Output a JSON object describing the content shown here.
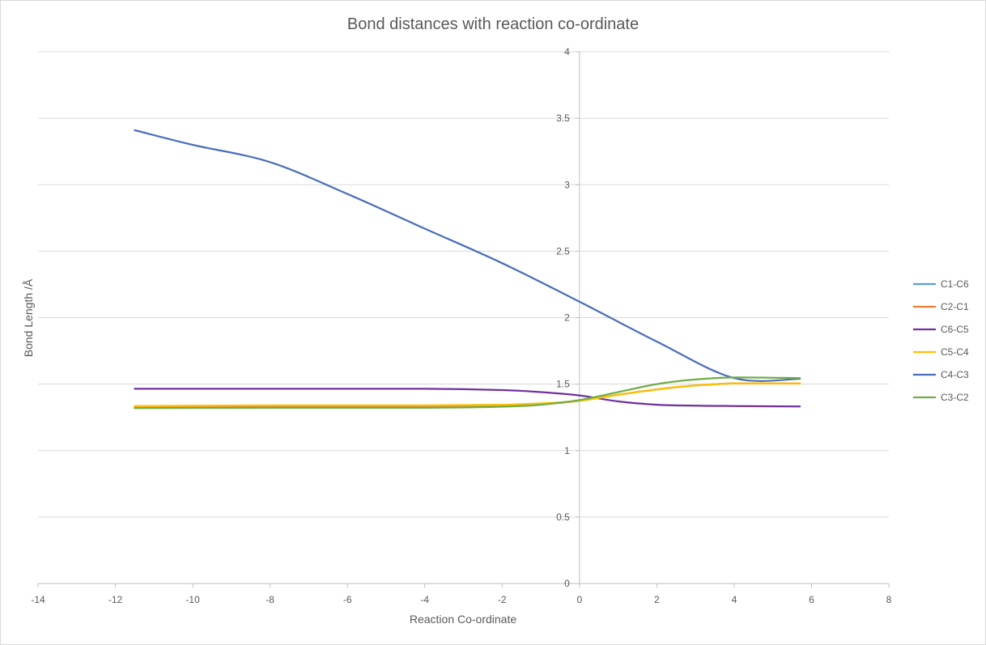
{
  "chart_data": {
    "type": "line",
    "title": "Bond distances with reaction co-ordinate",
    "xlabel": "Reaction Co-ordinate",
    "ylabel": "Bond Length /Å",
    "xlim": [
      -14,
      8
    ],
    "ylim": [
      0,
      4
    ],
    "x_ticks": [
      -14,
      -12,
      -10,
      -8,
      -6,
      -4,
      -2,
      0,
      2,
      4,
      6,
      8
    ],
    "y_ticks": [
      0,
      0.5,
      1,
      1.5,
      2,
      2.5,
      3,
      3.5,
      4
    ],
    "y_tick_labels": [
      "0",
      "0.5",
      "1",
      "1.5",
      "2",
      "2.5",
      "3",
      "3.5",
      "4"
    ],
    "grid": "horizontal",
    "legend_position": "right",
    "series": [
      {
        "name": "C1-C6",
        "color": "#5B9BD5",
        "points": [
          [
            -11.5,
            1.33
          ],
          [
            -8,
            1.335
          ],
          [
            -4,
            1.335
          ],
          [
            -2,
            1.34
          ],
          [
            -1,
            1.35
          ],
          [
            0,
            1.375
          ],
          [
            1,
            1.42
          ],
          [
            2,
            1.46
          ],
          [
            3,
            1.49
          ],
          [
            4,
            1.505
          ],
          [
            5.7,
            1.505
          ]
        ]
      },
      {
        "name": "C2-C1",
        "color": "#ED7D31",
        "points": [
          [
            -11.5,
            1.33
          ],
          [
            -8,
            1.335
          ],
          [
            -4,
            1.335
          ],
          [
            -2,
            1.34
          ],
          [
            -1,
            1.35
          ],
          [
            0,
            1.375
          ],
          [
            1,
            1.42
          ],
          [
            2,
            1.46
          ],
          [
            3,
            1.49
          ],
          [
            4,
            1.505
          ],
          [
            5.7,
            1.505
          ]
        ]
      },
      {
        "name": "C6-C5",
        "color": "#7030A0",
        "points": [
          [
            -11.5,
            1.465
          ],
          [
            -8,
            1.465
          ],
          [
            -4,
            1.465
          ],
          [
            -2,
            1.455
          ],
          [
            -1,
            1.44
          ],
          [
            0,
            1.415
          ],
          [
            1,
            1.37
          ],
          [
            2,
            1.345
          ],
          [
            3,
            1.338
          ],
          [
            4,
            1.335
          ],
          [
            5.7,
            1.332
          ]
        ]
      },
      {
        "name": "C5-C4",
        "color": "#FFC000",
        "points": [
          [
            -11.5,
            1.335
          ],
          [
            -8,
            1.34
          ],
          [
            -4,
            1.34
          ],
          [
            -2,
            1.345
          ],
          [
            -1,
            1.355
          ],
          [
            0,
            1.375
          ],
          [
            1,
            1.42
          ],
          [
            2,
            1.46
          ],
          [
            3,
            1.49
          ],
          [
            4,
            1.505
          ],
          [
            5.7,
            1.505
          ]
        ]
      },
      {
        "name": "C4-C3",
        "color": "#4A6EBD",
        "points": [
          [
            -11.5,
            3.41
          ],
          [
            -10,
            3.3
          ],
          [
            -8,
            3.17
          ],
          [
            -6,
            2.93
          ],
          [
            -4,
            2.67
          ],
          [
            -2,
            2.41
          ],
          [
            0,
            2.12
          ],
          [
            2,
            1.82
          ],
          [
            4,
            1.545
          ],
          [
            5.7,
            1.54
          ]
        ]
      },
      {
        "name": "C3-C2",
        "color": "#70AD47",
        "points": [
          [
            -11.5,
            1.32
          ],
          [
            -8,
            1.322
          ],
          [
            -4,
            1.322
          ],
          [
            -2,
            1.33
          ],
          [
            -1,
            1.345
          ],
          [
            0,
            1.38
          ],
          [
            1,
            1.44
          ],
          [
            2,
            1.5
          ],
          [
            3,
            1.535
          ],
          [
            4,
            1.55
          ],
          [
            5.7,
            1.545
          ]
        ]
      }
    ]
  }
}
